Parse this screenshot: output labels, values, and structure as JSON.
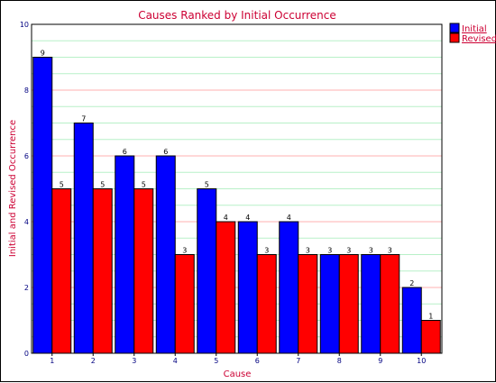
{
  "chart_data": {
    "type": "bar",
    "title": "Causes Ranked by Initial Occurrence",
    "xlabel": "Cause",
    "ylabel": "Initial and Revised Occurrence",
    "categories": [
      "1",
      "2",
      "3",
      "4",
      "5",
      "6",
      "7",
      "8",
      "9",
      "10"
    ],
    "series": [
      {
        "name": "Initial",
        "color": "#0000ff",
        "values": [
          9,
          7,
          6,
          6,
          5,
          4,
          4,
          3,
          3,
          2
        ]
      },
      {
        "name": "Revised",
        "color": "#ff0000",
        "values": [
          5,
          5,
          5,
          3,
          4,
          3,
          3,
          3,
          3,
          1
        ]
      }
    ],
    "ylim": [
      0,
      10
    ],
    "yticks": [
      "0",
      "2",
      "4",
      "6",
      "8",
      "10"
    ],
    "grid": true,
    "legend_position": "top-right",
    "colors": {
      "title": "#cc0033",
      "axis_label": "#cc0033",
      "tick": "#000080",
      "major_grid": "#ffb0b0",
      "minor_grid": "#b8f0c8",
      "plot_bg": "#ffffff",
      "bar_outline": "#000000"
    }
  }
}
